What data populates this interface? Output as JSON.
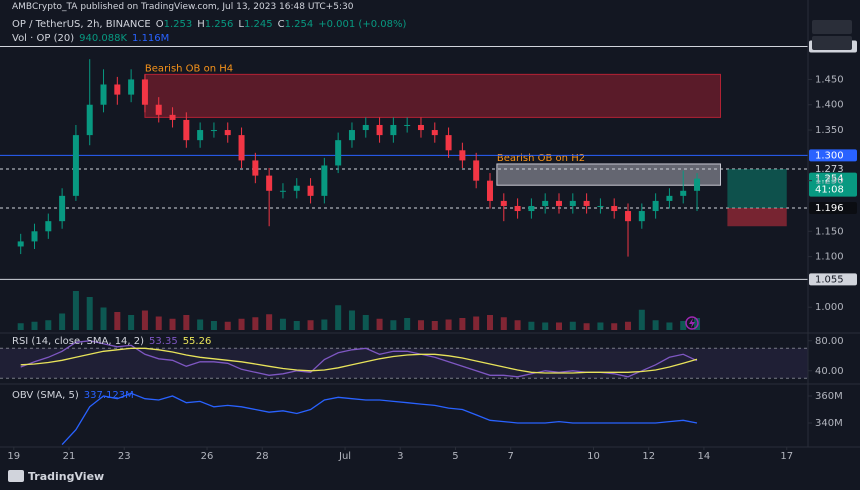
{
  "header": {
    "publisher": "AMBCrypto_TA published on TradingView.com, Jul 13, 2023 16:48 UTC+5:30",
    "legend": [
      {
        "key": "O",
        "value": "1.253"
      },
      {
        "key": "H",
        "value": "1.256"
      },
      {
        "key": "L",
        "value": "1.245"
      },
      {
        "key": "C",
        "value": "1.254"
      }
    ],
    "change": "+0.001 (+0.08%)"
  },
  "footer": {
    "brand": "TradingView"
  },
  "chart_data": [
    {
      "type": "candlestick",
      "title": "OP / TetherUS, 2h, BINANCE",
      "x": [
        0.25,
        0.75,
        1.25,
        1.75,
        2.25,
        2.75,
        3.25,
        3.75,
        4.25,
        4.75,
        5.25,
        5.75,
        6.25,
        6.75,
        7.25,
        7.75,
        8.25,
        8.75,
        9.25,
        9.75,
        10.25,
        10.75,
        11.25,
        11.75,
        12.25,
        12.75,
        13.25,
        13.75,
        14.25,
        14.75,
        15.25,
        15.75,
        16.25,
        16.75,
        17.25,
        17.75,
        18.25,
        18.75,
        19.25,
        19.75,
        20.25,
        20.75,
        21.25,
        21.75,
        22.25,
        22.75,
        23.25,
        23.75,
        24.25,
        24.75
      ],
      "open": [
        1.12,
        1.13,
        1.15,
        1.17,
        1.22,
        1.34,
        1.4,
        1.44,
        1.42,
        1.45,
        1.4,
        1.38,
        1.37,
        1.33,
        1.35,
        1.35,
        1.34,
        1.29,
        1.26,
        1.23,
        1.23,
        1.24,
        1.22,
        1.28,
        1.33,
        1.35,
        1.36,
        1.34,
        1.36,
        1.36,
        1.35,
        1.34,
        1.31,
        1.29,
        1.25,
        1.21,
        1.2,
        1.19,
        1.2,
        1.21,
        1.2,
        1.21,
        1.2,
        1.2,
        1.19,
        1.17,
        1.19,
        1.21,
        1.22,
        1.23
      ],
      "high": [
        1.145,
        1.165,
        1.185,
        1.235,
        1.36,
        1.49,
        1.47,
        1.455,
        1.47,
        1.46,
        1.415,
        1.395,
        1.385,
        1.365,
        1.365,
        1.365,
        1.355,
        1.305,
        1.275,
        1.245,
        1.255,
        1.255,
        1.295,
        1.345,
        1.365,
        1.375,
        1.375,
        1.375,
        1.375,
        1.375,
        1.365,
        1.355,
        1.325,
        1.305,
        1.265,
        1.225,
        1.215,
        1.215,
        1.225,
        1.225,
        1.225,
        1.225,
        1.215,
        1.215,
        1.205,
        1.205,
        1.225,
        1.235,
        1.27,
        1.265
      ],
      "low": [
        1.105,
        1.115,
        1.135,
        1.155,
        1.21,
        1.32,
        1.385,
        1.4,
        1.405,
        1.385,
        1.365,
        1.355,
        1.315,
        1.315,
        1.335,
        1.325,
        1.275,
        1.245,
        1.16,
        1.215,
        1.215,
        1.205,
        1.205,
        1.265,
        1.315,
        1.335,
        1.325,
        1.325,
        1.345,
        1.335,
        1.325,
        1.295,
        1.275,
        1.235,
        1.195,
        1.17,
        1.175,
        1.175,
        1.185,
        1.185,
        1.185,
        1.185,
        1.185,
        1.175,
        1.1,
        1.155,
        1.175,
        1.195,
        1.205,
        1.19
      ],
      "close": [
        1.13,
        1.15,
        1.17,
        1.22,
        1.34,
        1.4,
        1.44,
        1.42,
        1.45,
        1.4,
        1.38,
        1.37,
        1.33,
        1.35,
        1.35,
        1.34,
        1.29,
        1.26,
        1.23,
        1.23,
        1.24,
        1.22,
        1.28,
        1.33,
        1.35,
        1.36,
        1.34,
        1.36,
        1.36,
        1.35,
        1.34,
        1.31,
        1.29,
        1.25,
        1.21,
        1.2,
        1.19,
        1.2,
        1.21,
        1.2,
        1.21,
        1.2,
        1.2,
        1.19,
        1.17,
        1.19,
        1.21,
        1.22,
        1.23,
        1.254
      ],
      "up_color": "#089981",
      "down_color": "#f23645",
      "xlim": [
        -0.5,
        28.77
      ],
      "xticks": [
        {
          "value": 0,
          "label": "19"
        },
        {
          "value": 2,
          "label": "21"
        },
        {
          "value": 4,
          "label": "23"
        },
        {
          "value": 7,
          "label": "26"
        },
        {
          "value": 9,
          "label": "28"
        },
        {
          "value": 12,
          "label": "Jul"
        },
        {
          "value": 14,
          "label": "3"
        },
        {
          "value": 16,
          "label": "5"
        },
        {
          "value": 18,
          "label": "7"
        },
        {
          "value": 21,
          "label": "10"
        },
        {
          "value": 23,
          "label": "12"
        },
        {
          "value": 25,
          "label": "14"
        },
        {
          "value": 28,
          "label": "17"
        }
      ],
      "ylim": [
        0.955,
        1.518
      ],
      "yticks": [
        {
          "value": 1.45,
          "label": "1.450"
        },
        {
          "value": 1.4,
          "label": "1.400"
        },
        {
          "value": 1.35,
          "label": "1.350"
        },
        {
          "value": 1.25,
          "label": "1.250"
        },
        {
          "value": 1.15,
          "label": "1.150"
        },
        {
          "value": 1.1,
          "label": "1.100"
        },
        {
          "value": 1.0,
          "label": "1.000"
        }
      ],
      "price_lines": [
        {
          "value": 1.515,
          "label": "1.515",
          "style": "solid",
          "color": "#d1d4dc",
          "box": "#d1d4dc",
          "text_color": "#131722"
        },
        {
          "value": 1.3,
          "label": "1.300",
          "style": "solid",
          "color": "#2962ff",
          "box": "#2962ff",
          "text_color": "#ffffff"
        },
        {
          "value": 1.273,
          "label": "1.273",
          "style": "dashed",
          "color": "#d1d4dc",
          "box": "#131722",
          "text_color": "#d1d4dc"
        },
        {
          "value": 1.196,
          "label": "1.196",
          "style": "dashed",
          "color": "#d1d4dc",
          "box": "#0b0d12",
          "text_color": "#ffffff"
        },
        {
          "value": 1.055,
          "label": "1.055",
          "style": "solid",
          "color": "#d1d4dc",
          "box": "#d1d4dc",
          "text_color": "#131722"
        }
      ],
      "zones": [
        {
          "label": "Bearish OB on H4",
          "top": 1.46,
          "bottom": 1.375,
          "x_start": 4.75,
          "x_end": 25.6,
          "fill": "rgba(178,34,52,0.45)",
          "stroke": "#b22234",
          "label_color": "#f7931a"
        },
        {
          "label": "Bearish OB on H2",
          "top": 1.283,
          "bottom": 1.241,
          "x_start": 17.5,
          "x_end": 25.6,
          "fill": "rgba(200,200,210,0.45)",
          "stroke": "#c8c8d2",
          "label_color": "#f7931a"
        }
      ],
      "position": {
        "x_start": 25.85,
        "x_end": 28.0,
        "target": 1.273,
        "entry": 1.196,
        "stop": 1.16,
        "profit_color": "rgba(8,153,129,0.45)",
        "loss_color": "rgba(242,54,69,0.45)"
      },
      "last_price": {
        "value": 1.254,
        "label": "1.254",
        "countdown": "41:08",
        "color": "#089981"
      }
    },
    {
      "type": "bar",
      "title": "Vol · OP (20)",
      "legend_values": [
        "940.088K",
        "1.116M"
      ],
      "legend_colors": [
        "#089981",
        "#2962ff"
      ],
      "x": [
        0.25,
        0.75,
        1.25,
        1.75,
        2.25,
        2.75,
        3.25,
        3.75,
        4.25,
        4.75,
        5.25,
        5.75,
        6.25,
        6.75,
        7.25,
        7.75,
        8.25,
        8.75,
        9.25,
        9.75,
        10.25,
        10.75,
        11.25,
        11.75,
        12.25,
        12.75,
        13.25,
        13.75,
        14.25,
        14.75,
        15.25,
        15.75,
        16.25,
        16.75,
        17.25,
        17.75,
        18.25,
        18.75,
        19.25,
        19.75,
        20.25,
        20.75,
        21.25,
        21.75,
        22.25,
        22.75,
        23.25,
        23.75,
        24.25,
        24.75
      ],
      "values": [
        900,
        1100,
        1300,
        2200,
        5200,
        4400,
        3000,
        2400,
        2000,
        2600,
        1800,
        1500,
        2000,
        1400,
        1200,
        1100,
        1500,
        1700,
        2100,
        1500,
        1200,
        1300,
        1400,
        3300,
        2600,
        2000,
        1500,
        1300,
        1600,
        1300,
        1200,
        1400,
        1600,
        1800,
        2000,
        1700,
        1300,
        1100,
        1000,
        1000,
        1100,
        900,
        1000,
        900,
        1100,
        2700,
        1300,
        1000,
        1200,
        1600
      ],
      "ylim": [
        0,
        8000
      ]
    },
    {
      "type": "line",
      "title": "RSI (14, close, SMA, 14, 2)",
      "legend_values": [
        "53.35",
        "55.26"
      ],
      "x": [
        0.25,
        0.75,
        1.25,
        1.75,
        2.25,
        2.75,
        3.25,
        3.75,
        4.25,
        4.75,
        5.25,
        5.75,
        6.25,
        6.75,
        7.25,
        7.75,
        8.25,
        8.75,
        9.25,
        9.75,
        10.25,
        10.75,
        11.25,
        11.75,
        12.25,
        12.75,
        13.25,
        13.75,
        14.25,
        14.75,
        15.25,
        15.75,
        16.25,
        16.75,
        17.25,
        17.75,
        18.25,
        18.75,
        19.25,
        19.75,
        20.25,
        20.75,
        21.25,
        21.75,
        22.25,
        22.75,
        23.25,
        23.75,
        24.25,
        24.75
      ],
      "series": [
        {
          "color": "#7e57c2",
          "values": [
            45,
            52,
            58,
            66,
            78,
            80,
            76,
            72,
            74,
            62,
            56,
            54,
            46,
            52,
            52,
            50,
            42,
            38,
            34,
            36,
            40,
            38,
            55,
            64,
            68,
            70,
            62,
            66,
            66,
            62,
            58,
            52,
            46,
            40,
            34,
            34,
            32,
            36,
            40,
            38,
            40,
            38,
            38,
            36,
            32,
            40,
            48,
            58,
            62,
            53.35
          ]
        },
        {
          "color": "#e8e35a",
          "values": [
            48,
            49,
            51,
            54,
            58,
            62,
            66,
            68,
            70,
            70,
            68,
            65,
            61,
            58,
            56,
            54,
            52,
            49,
            46,
            43,
            41,
            40,
            41,
            44,
            48,
            52,
            56,
            59,
            61,
            62,
            62,
            60,
            57,
            53,
            49,
            45,
            41,
            38,
            37,
            37,
            37,
            38,
            38,
            38,
            38,
            39,
            41,
            45,
            50,
            55.26
          ]
        }
      ],
      "band": [
        30,
        70
      ],
      "band_color": "rgba(126,87,194,0.12)",
      "ylim": [
        25,
        85
      ],
      "yticks": [
        {
          "value": 80,
          "label": "80.00"
        },
        {
          "value": 40,
          "label": "40.00"
        }
      ]
    },
    {
      "type": "line",
      "title": "OBV (SMA, 5)",
      "legend_values": [
        "337.123M"
      ],
      "x": [
        0.25,
        0.75,
        1.25,
        1.75,
        2.25,
        2.75,
        3.25,
        3.75,
        4.25,
        4.75,
        5.25,
        5.75,
        6.25,
        6.75,
        7.25,
        7.75,
        8.25,
        8.75,
        9.25,
        9.75,
        10.25,
        10.75,
        11.25,
        11.75,
        12.25,
        12.75,
        13.25,
        13.75,
        14.25,
        14.75,
        15.25,
        15.75,
        16.25,
        16.75,
        17.25,
        17.75,
        18.25,
        18.75,
        19.25,
        19.75,
        20.25,
        20.75,
        21.25,
        21.75,
        22.25,
        22.75,
        23.25,
        23.75,
        24.25,
        24.75
      ],
      "series": [
        {
          "color": "#2962ff",
          "values": [
            null,
            null,
            null,
            324,
            335,
            352,
            360,
            358,
            362,
            358,
            357,
            360,
            355,
            356,
            352,
            353,
            352,
            350,
            348,
            349,
            347,
            350,
            357,
            359,
            358,
            357,
            357,
            356,
            355,
            354,
            353,
            351,
            350,
            346,
            342,
            341,
            340,
            340,
            340,
            341,
            340,
            340,
            340,
            340,
            340,
            340,
            340,
            341,
            342,
            340
          ]
        }
      ],
      "ylim": [
        323.7,
        367.4
      ],
      "yticks": [
        {
          "value": 360,
          "label": "360M"
        },
        {
          "value": 340,
          "label": "340M"
        }
      ]
    }
  ]
}
